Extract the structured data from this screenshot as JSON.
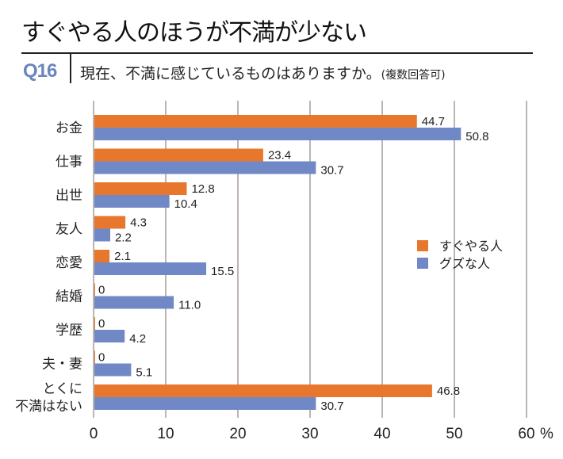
{
  "header": {
    "title": "すぐやる人のほうが不満が少ない",
    "question_number": "Q16",
    "question_text": "現在、不満に感じているものはありますか。",
    "question_note": "(複数回答可)"
  },
  "colors": {
    "series_sugu": "#e8772e",
    "series_guzu": "#7089c6",
    "grid": "#bdb5b0",
    "accent": "#6a86bd"
  },
  "chart_data": {
    "type": "bar",
    "orientation": "horizontal",
    "title": "現在、不満に感じているものはありますか。(複数回答可)",
    "xlabel": "%",
    "ylabel": "",
    "xlim": [
      0,
      60
    ],
    "xticks": [
      0,
      10,
      20,
      30,
      40,
      50,
      60
    ],
    "tick_labels": [
      "0",
      "10",
      "20",
      "30",
      "40",
      "50",
      "60"
    ],
    "unit_label": "%",
    "grid": true,
    "legend_position": "right",
    "categories": [
      "お金",
      "仕事",
      "出世",
      "友人",
      "恋愛",
      "結婚",
      "学歴",
      "夫・妻",
      "とくに\n不満はない"
    ],
    "series": [
      {
        "name": "すぐやる人",
        "values": [
          44.7,
          23.4,
          12.8,
          4.3,
          2.1,
          0,
          0,
          0,
          46.8
        ],
        "labels": [
          "44.7",
          "23.4",
          "12.8",
          "4.3",
          "2.1",
          "0",
          "0",
          "0",
          "46.8"
        ]
      },
      {
        "name": "グズな人",
        "values": [
          50.8,
          30.7,
          10.4,
          2.2,
          15.5,
          11.0,
          4.2,
          5.1,
          30.7
        ],
        "labels": [
          "50.8",
          "30.7",
          "10.4",
          "2.2",
          "15.5",
          "11.0",
          "4.2",
          "5.1",
          "30.7"
        ]
      }
    ]
  }
}
